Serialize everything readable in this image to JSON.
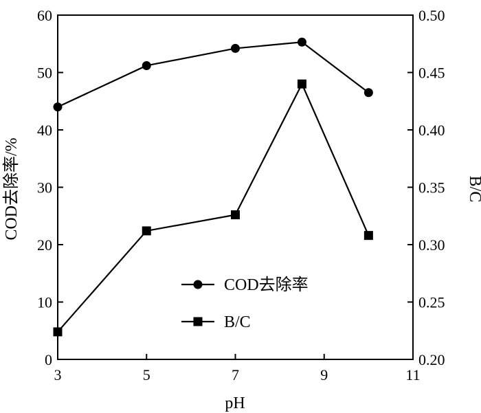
{
  "chart_data": {
    "type": "line",
    "xlabel": "pH",
    "ylabel_left": "COD去除率/%",
    "ylabel_right": "B/C",
    "xlim": [
      3,
      11
    ],
    "x_ticks": [
      3,
      5,
      7,
      9,
      11
    ],
    "ylim_left": [
      0,
      60
    ],
    "y_left_ticks": [
      0,
      10,
      20,
      30,
      40,
      50,
      60
    ],
    "ylim_right": [
      0.2,
      0.5
    ],
    "y_right_ticks": [
      "0.20",
      "0.25",
      "0.30",
      "0.35",
      "0.40",
      "0.45",
      "0.50"
    ],
    "grid": false,
    "legend_position": "center-bottom",
    "series": [
      {
        "name": "COD去除率",
        "axis": "left",
        "marker": "circle",
        "x": [
          3,
          5,
          7,
          8.5,
          10
        ],
        "y": [
          44.0,
          51.2,
          54.2,
          55.3,
          46.5
        ]
      },
      {
        "name": "B/C",
        "axis": "right",
        "marker": "square",
        "x": [
          3,
          5,
          7,
          8.5,
          10
        ],
        "y": [
          0.224,
          0.312,
          0.326,
          0.44,
          0.308
        ]
      }
    ]
  },
  "colors": {
    "line": "#000000",
    "background": "#ffffff"
  }
}
